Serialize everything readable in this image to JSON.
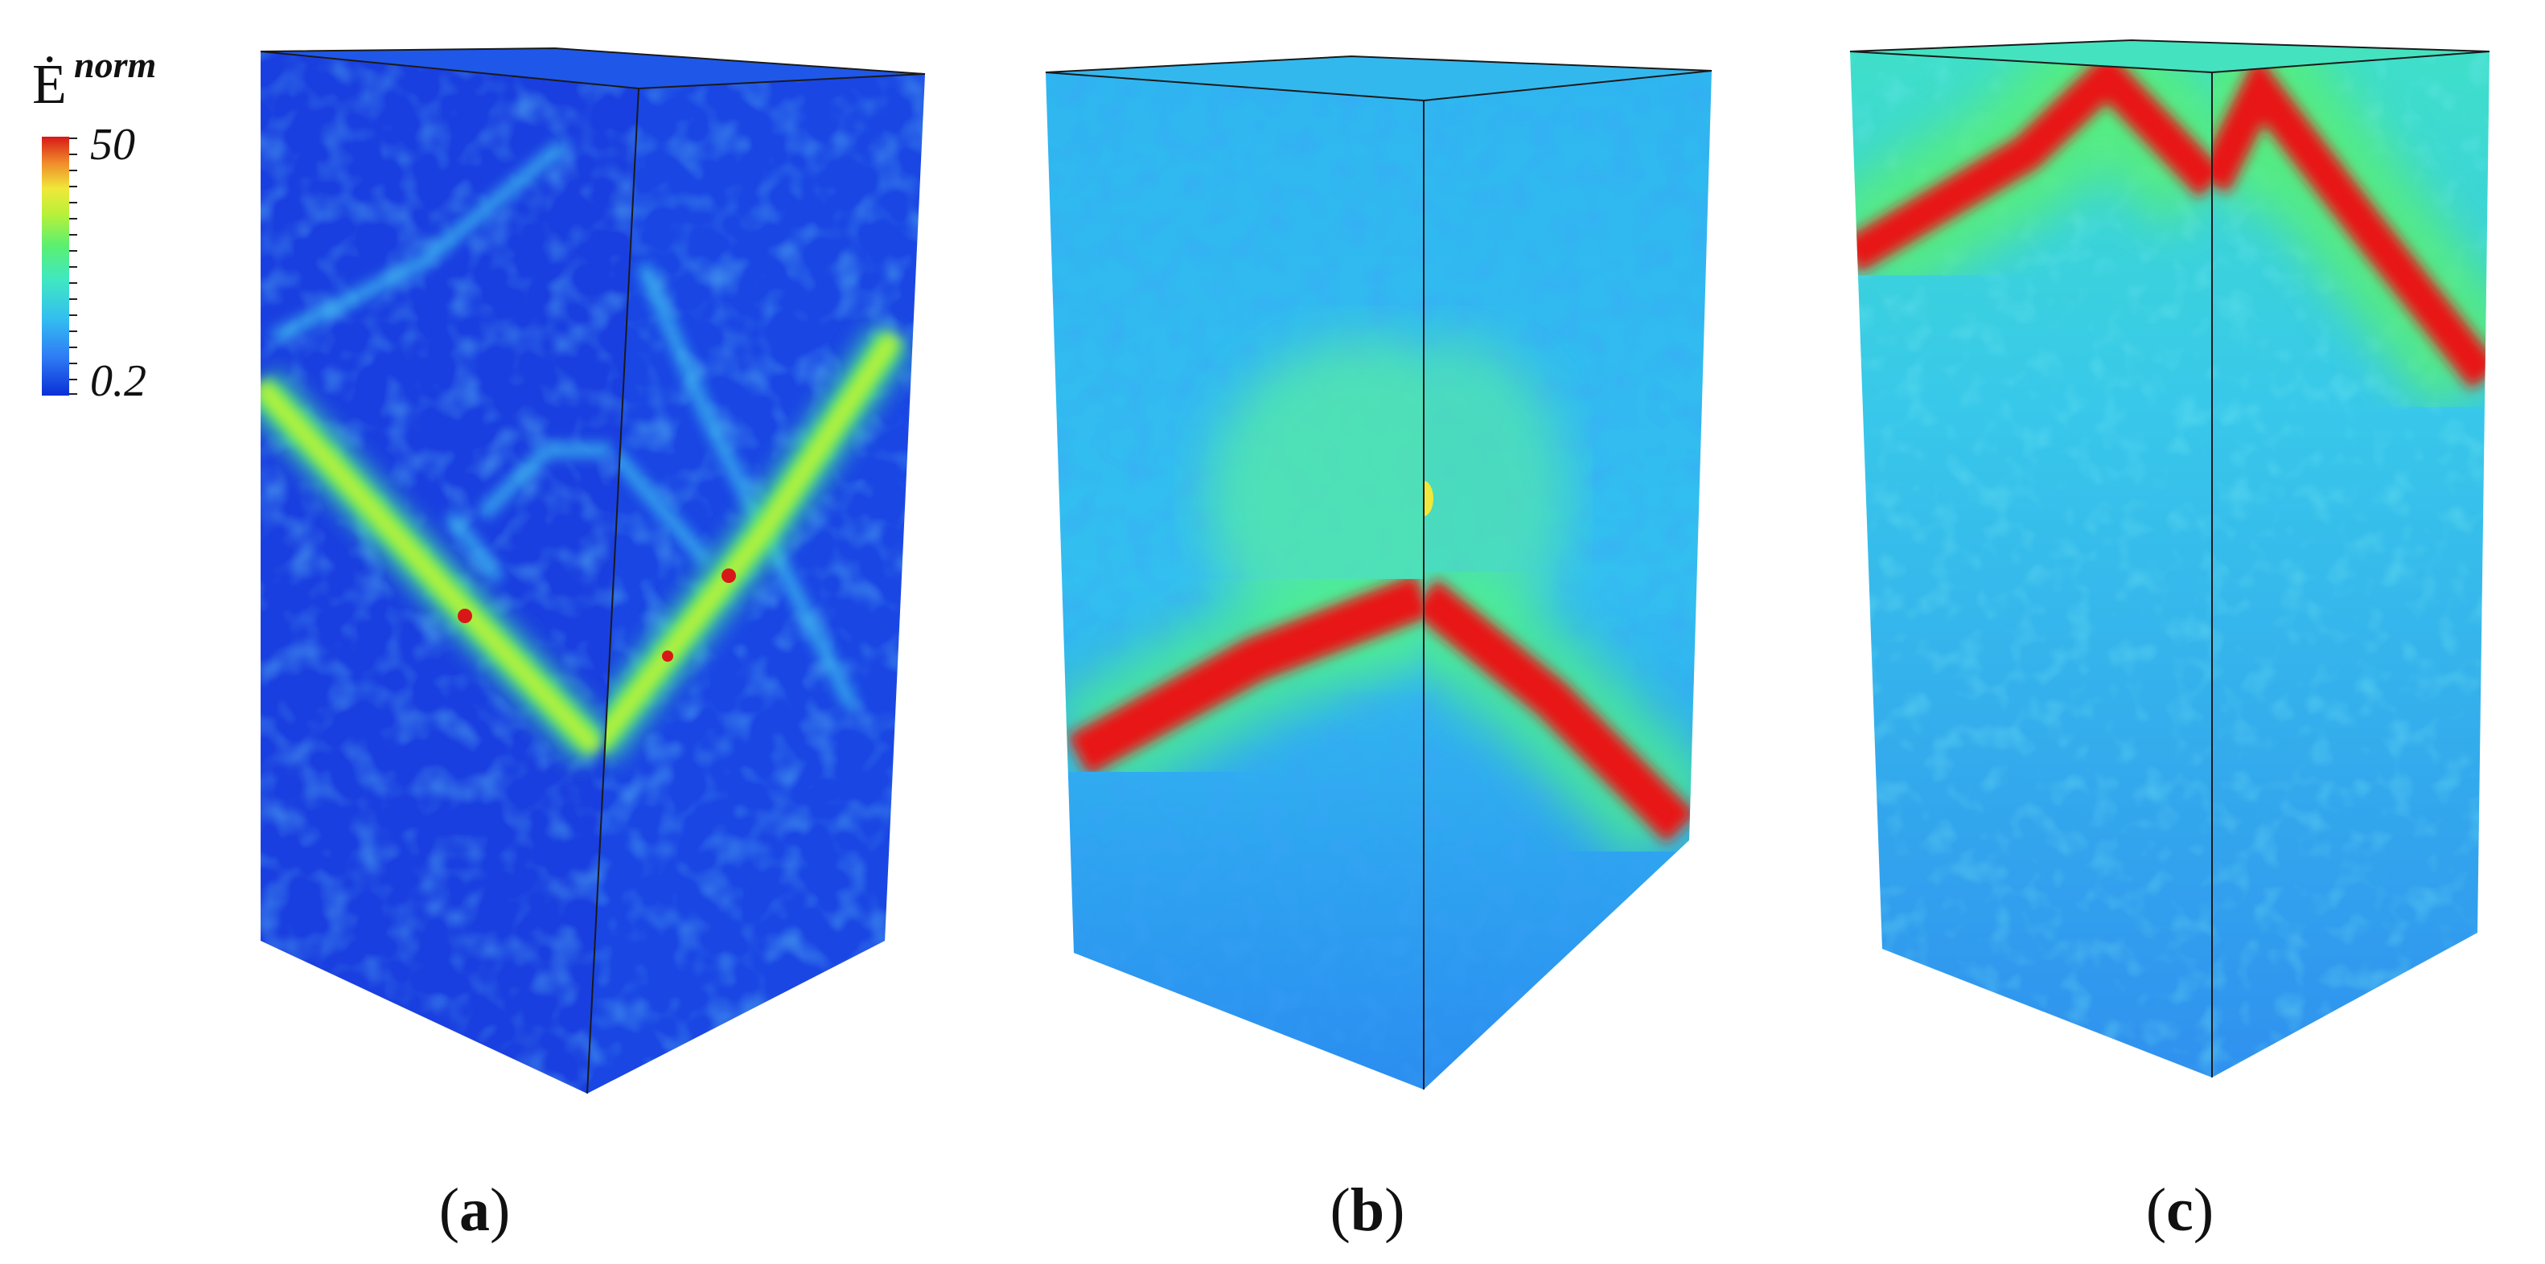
{
  "legend": {
    "symbol": "Ė",
    "superscript": "norm",
    "max_label": "50",
    "min_label": "0.2",
    "colors": [
      "#0a2fd6",
      "#1f5ff0",
      "#2f8cf5",
      "#33bff0",
      "#3fe0d0",
      "#4ef08a",
      "#7cf04a",
      "#b8f03a",
      "#f0f03a",
      "#f8c030",
      "#f08a2a",
      "#e84a22",
      "#d81818"
    ]
  },
  "panels": [
    {
      "label": "a",
      "open": "(",
      "close": ")",
      "colormap": "strain-rate",
      "band": "V-shaped shear band, mid-height"
    },
    {
      "label": "b",
      "open": "(",
      "close": ")",
      "colormap": "strain-rate",
      "band": "inverted-V shear band, lower half"
    },
    {
      "label": "c",
      "open": "(",
      "close": ")",
      "colormap": "strain-rate",
      "band": "inverted-V shear band, top"
    }
  ]
}
